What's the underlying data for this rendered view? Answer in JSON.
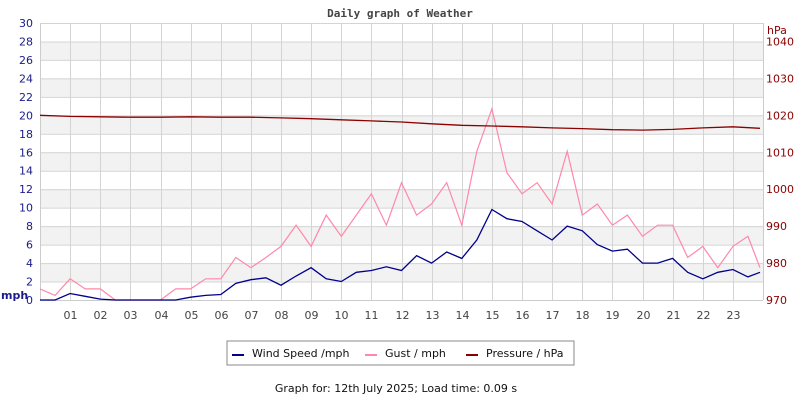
{
  "chart_data": {
    "type": "line",
    "title": "Daily graph of Weather",
    "ylabel": "mph",
    "y2label": "hPa",
    "ylim": [
      0,
      30
    ],
    "y2lim": [
      970,
      1045
    ],
    "yticks": [
      0,
      2,
      4,
      6,
      8,
      10,
      12,
      14,
      16,
      18,
      20,
      22,
      24,
      26,
      28,
      30
    ],
    "y2ticks": [
      970,
      980,
      990,
      1000,
      1010,
      1020,
      1030,
      1040
    ],
    "xlim": [
      0,
      24
    ],
    "xticks": [
      "01",
      "02",
      "03",
      "04",
      "05",
      "06",
      "07",
      "08",
      "09",
      "10",
      "11",
      "12",
      "13",
      "14",
      "15",
      "16",
      "17",
      "18",
      "19",
      "20",
      "21",
      "22",
      "23"
    ],
    "grid": true,
    "legend_placement": "bottom",
    "series": [
      {
        "name": "Wind Speed /mph",
        "color": "#00008b",
        "axis": "left",
        "x": [
          0,
          0.5,
          1,
          1.5,
          2,
          2.5,
          3,
          3.5,
          4,
          4.5,
          5,
          5.5,
          6,
          6.5,
          7,
          7.5,
          8,
          8.5,
          9,
          9.5,
          10,
          10.5,
          11,
          11.5,
          12,
          12.5,
          13,
          13.5,
          14,
          14.5,
          15,
          15.5,
          16,
          16.5,
          17,
          17.5,
          18,
          18.5,
          19,
          19.5,
          20,
          20.5,
          21,
          21.5,
          22,
          22.5,
          23,
          23.5,
          23.9
        ],
        "values": [
          0,
          0,
          0.7,
          0.4,
          0.1,
          0,
          0,
          0,
          0,
          0,
          0.3,
          0.5,
          0.6,
          1.8,
          2.2,
          2.4,
          1.6,
          2.6,
          3.5,
          2.3,
          2.0,
          3.0,
          3.2,
          3.6,
          3.2,
          4.8,
          4.0,
          5.2,
          4.5,
          6.5,
          9.8,
          8.8,
          8.5,
          7.5,
          6.5,
          8.0,
          7.5,
          6.0,
          5.3,
          5.5,
          4.0,
          4.0,
          4.5,
          3.0,
          2.3,
          3.0,
          3.3,
          2.5,
          3.0
        ]
      },
      {
        "name": "Gust / mph",
        "color": "#ff88aa",
        "axis": "left",
        "x": [
          0,
          0.5,
          1,
          1.5,
          2,
          2.5,
          3,
          3.5,
          4,
          4.5,
          5,
          5.5,
          6,
          6.5,
          7,
          7.5,
          8,
          8.5,
          9,
          9.5,
          10,
          10.5,
          11,
          11.5,
          12,
          12.5,
          13,
          13.5,
          14,
          14.5,
          15,
          15.5,
          16,
          16.5,
          17,
          17.5,
          18,
          18.5,
          19,
          19.5,
          20,
          20.5,
          21,
          21.5,
          22,
          22.5,
          23,
          23.5,
          23.9
        ],
        "values": [
          1.2,
          0.5,
          2.3,
          1.2,
          1.2,
          0,
          0,
          0,
          0,
          1.2,
          1.2,
          2.3,
          2.3,
          4.6,
          3.5,
          4.6,
          5.8,
          8.1,
          5.8,
          9.2,
          6.9,
          9.2,
          11.5,
          8.1,
          12.7,
          9.2,
          10.4,
          12.7,
          8.1,
          16.1,
          20.7,
          13.8,
          11.5,
          12.7,
          10.4,
          16.1,
          9.2,
          10.4,
          8.1,
          9.2,
          6.9,
          8.1,
          8.1,
          4.6,
          5.8,
          3.5,
          5.8,
          6.9,
          3.5
        ]
      },
      {
        "name": "Pressure / hPa",
        "color": "#8b0000",
        "axis": "right",
        "x": [
          0,
          1,
          2,
          3,
          4,
          5,
          6,
          7,
          8,
          9,
          10,
          11,
          12,
          13,
          14,
          15,
          16,
          17,
          18,
          19,
          20,
          21,
          22,
          23,
          23.9
        ],
        "values": [
          1020,
          1019.7,
          1019.6,
          1019.5,
          1019.5,
          1019.6,
          1019.5,
          1019.5,
          1019.3,
          1019.1,
          1018.8,
          1018.5,
          1018.2,
          1017.7,
          1017.3,
          1017.1,
          1016.9,
          1016.6,
          1016.4,
          1016.1,
          1016.0,
          1016.2,
          1016.6,
          1016.9,
          1016.5
        ]
      }
    ]
  },
  "footer": "Graph for: 12th July 2025; Load time: 0.09 s"
}
